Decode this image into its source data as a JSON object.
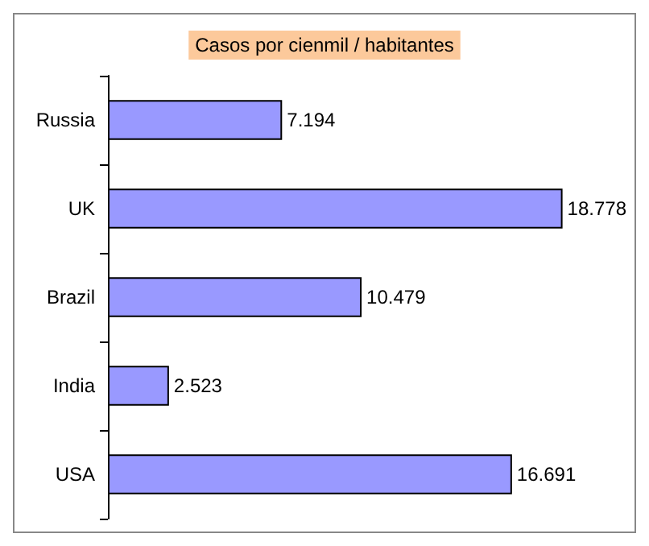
{
  "chart_data": {
    "type": "bar",
    "orientation": "horizontal",
    "title": "Casos por cienmil / habitantes",
    "categories": [
      "Russia",
      "UK",
      "Brazil",
      "India",
      "USA"
    ],
    "values": [
      7.194,
      18.778,
      10.479,
      2.523,
      16.691
    ],
    "color": "#9999ff",
    "data_labels": true
  }
}
